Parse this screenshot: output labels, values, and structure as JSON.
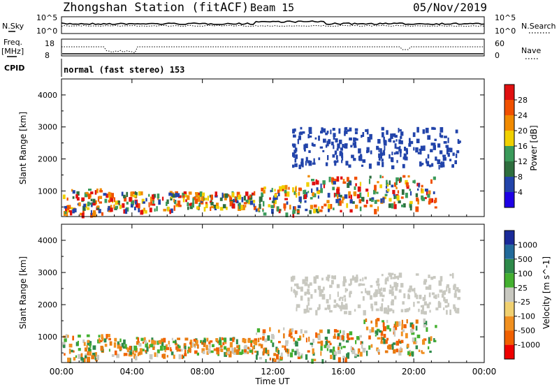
{
  "header": {
    "station": "Zhongshan Station (fitACF)",
    "beam": "Beam 15",
    "date": "05/Nov/2019"
  },
  "top_panel": {
    "nsky_label": "N.Sky",
    "nsearch_label": "N.Search",
    "left_ticks": [
      "10^5",
      "10^0"
    ],
    "right_ticks": [
      "10^5",
      "10^0"
    ]
  },
  "freq_panel": {
    "freq_label": "Freq.",
    "freq_unit": "[MHz]",
    "left_ticks": [
      "18",
      "8"
    ],
    "nave_label": "Nave",
    "right_ticks": [
      "60",
      "0"
    ]
  },
  "cpid": {
    "label": "CPID",
    "text": "normal (fast stereo) 153"
  },
  "colors": {
    "power_scale": [
      "#1e00e6",
      "#2244aa",
      "#2e6e3e",
      "#3a9a5a",
      "#f0d000",
      "#f08a00",
      "#f05000",
      "#e01010"
    ],
    "velocity_scale": [
      "#ee0000",
      "#f06000",
      "#f09020",
      "#f0d070",
      "#c8c8c0",
      "#44b030",
      "#2e8a4a",
      "#226a9a",
      "#1a2a99"
    ],
    "scatter_colors_power": [
      "#2244aa",
      "#2e6e3e",
      "#3a9a5a",
      "#f0d000",
      "#f08a00",
      "#f05000",
      "#e01010"
    ],
    "scatter_colors_velocity": [
      "#c8c8c0",
      "#44b030",
      "#2e8a4a",
      "#f09020",
      "#f06000",
      "#e87a10"
    ]
  },
  "chart_data": [
    {
      "type": "heatmap",
      "title": "Power",
      "ylabel": "Slant Range [km]",
      "xlabel": "Time UT",
      "x_ticks": [
        "00:00",
        "04:00",
        "08:00",
        "12:00",
        "16:00",
        "20:00",
        "00:00"
      ],
      "x_tick_hours": [
        0,
        4,
        8,
        12,
        16,
        20,
        24
      ],
      "y_ticks": [
        1000,
        2000,
        3000,
        4000
      ],
      "ylim": [
        200,
        4500
      ],
      "xlim": [
        0,
        24
      ],
      "colorbar": {
        "label": "Power [dB]",
        "ticks": [
          "28",
          "24",
          "20",
          "16",
          "12",
          "8",
          "4"
        ],
        "range": [
          0,
          30
        ]
      },
      "regions": [
        {
          "start_hour": 0.0,
          "end_hour": 2.6,
          "range_low": 300,
          "range_high": 1100,
          "level": 8
        },
        {
          "start_hour": 2.6,
          "end_hour": 6.4,
          "range_low": 400,
          "range_high": 1000,
          "level": 12
        },
        {
          "start_hour": 6.4,
          "end_hour": 11.0,
          "range_low": 500,
          "range_high": 1000,
          "level": 14
        },
        {
          "start_hour": 11.0,
          "end_hour": 13.6,
          "range_low": 300,
          "range_high": 1200,
          "level": 16
        },
        {
          "start_hour": 13.6,
          "end_hour": 18.4,
          "range_low": 400,
          "range_high": 1500,
          "level": 24
        },
        {
          "start_hour": 18.4,
          "end_hour": 21.2,
          "range_low": 500,
          "range_high": 1500,
          "level": 14
        },
        {
          "start_hour": 13.0,
          "end_hour": 22.5,
          "range_low": 1800,
          "range_high": 3000,
          "level": 6
        }
      ]
    },
    {
      "type": "heatmap",
      "title": "Velocity",
      "ylabel": "Slant Range [km]",
      "xlabel": "Time UT",
      "x_ticks": [
        "00:00",
        "04:00",
        "08:00",
        "12:00",
        "16:00",
        "20:00",
        "00:00"
      ],
      "x_tick_hours": [
        0,
        4,
        8,
        12,
        16,
        20,
        24
      ],
      "y_ticks": [
        1000,
        2000,
        3000,
        4000
      ],
      "ylim": [
        200,
        4500
      ],
      "xlim": [
        0,
        24
      ],
      "colorbar": {
        "label": "Velocity [m s^-1]",
        "ticks": [
          "1000",
          "500",
          "100",
          "25",
          "-25",
          "-100",
          "-500",
          "-1000"
        ],
        "range": [
          -1000,
          1000
        ]
      },
      "regions": [
        {
          "start_hour": 0.0,
          "end_hour": 2.6,
          "range_low": 300,
          "range_high": 1100,
          "velocity": 100
        },
        {
          "start_hour": 2.6,
          "end_hour": 7.0,
          "range_low": 400,
          "range_high": 1000,
          "velocity": -100
        },
        {
          "start_hour": 7.0,
          "end_hour": 11.0,
          "range_low": 500,
          "range_high": 1000,
          "velocity": 100
        },
        {
          "start_hour": 11.0,
          "end_hour": 17.0,
          "range_low": 300,
          "range_high": 1300,
          "velocity": -100
        },
        {
          "start_hour": 17.0,
          "end_hour": 21.2,
          "range_low": 500,
          "range_high": 1600,
          "velocity": 100
        },
        {
          "start_hour": 13.0,
          "end_hour": 22.5,
          "range_low": 1800,
          "range_high": 3000,
          "velocity": 0
        }
      ]
    }
  ]
}
